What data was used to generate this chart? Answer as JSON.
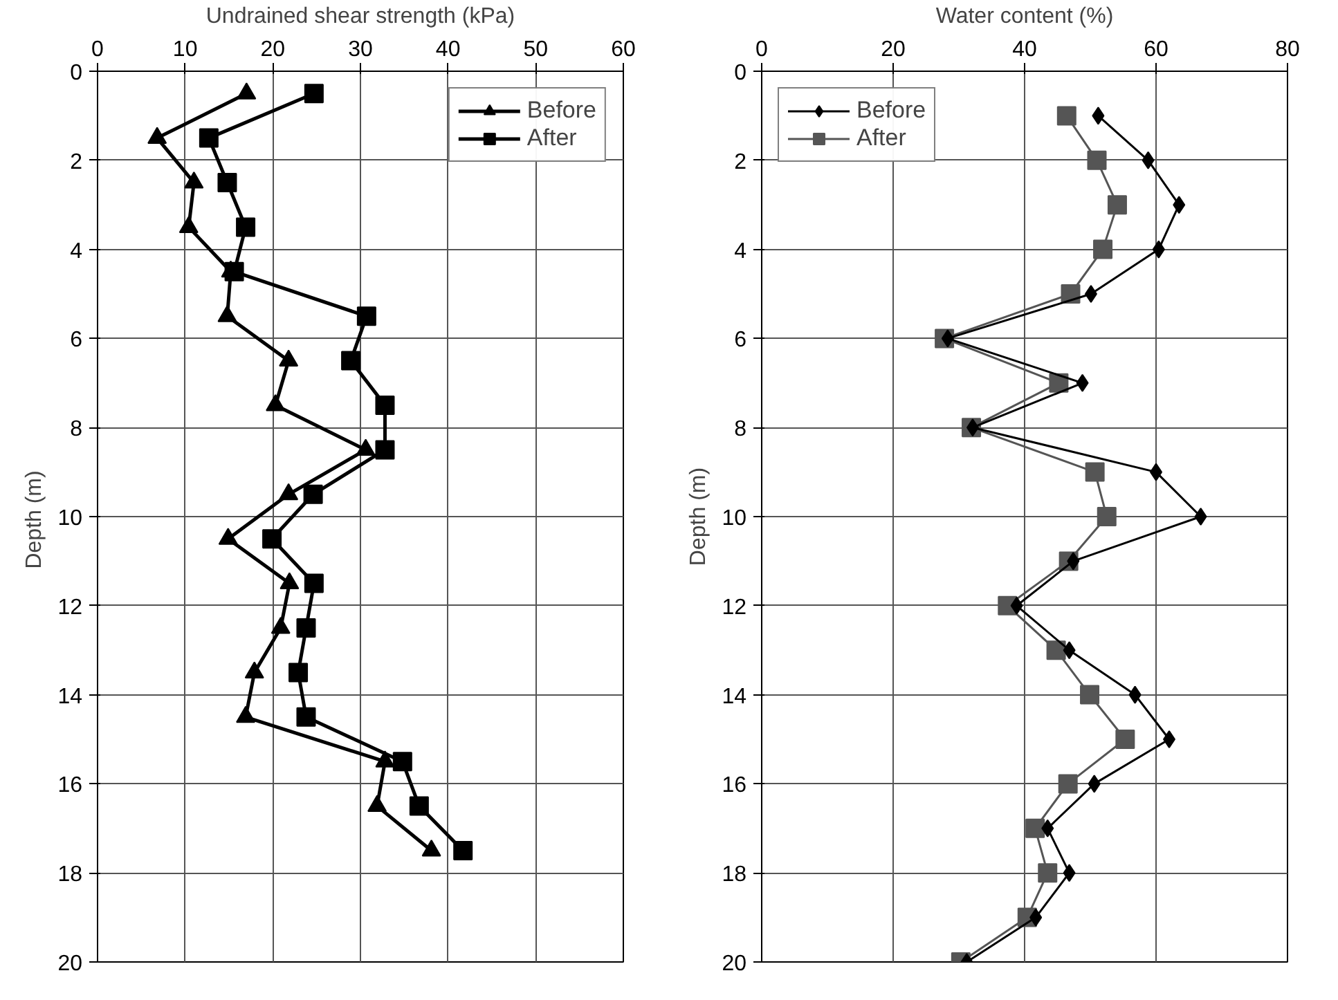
{
  "chart_data": [
    {
      "type": "line",
      "xlabel": "Undrained shear strength (kPa)",
      "ylabel": "Depth  (m)",
      "xlim": [
        0,
        60
      ],
      "xticks": [
        0,
        10,
        20,
        30,
        40,
        50,
        60
      ],
      "ylim": [
        20,
        0
      ],
      "yticks": [
        0,
        2,
        4,
        6,
        8,
        10,
        12,
        14,
        16,
        18,
        20
      ],
      "grid": true,
      "legend": "top right",
      "line_style": "solid",
      "series": [
        {
          "name": "Before",
          "color": "#000000",
          "marker": "triangle",
          "x": [
            17.0,
            6.8,
            11.0,
            10.4,
            15.2,
            14.8,
            21.8,
            20.3,
            30.6,
            21.8,
            14.9,
            21.9,
            20.9,
            17.9,
            16.9,
            32.8,
            31.9,
            38.1
          ],
          "values": [
            0.5,
            1.5,
            2.5,
            3.5,
            4.5,
            5.5,
            6.5,
            7.5,
            8.5,
            9.5,
            10.5,
            11.5,
            12.5,
            13.5,
            14.5,
            15.5,
            16.5,
            17.5
          ]
        },
        {
          "name": "After",
          "color": "#000000",
          "marker": "square",
          "x": [
            24.7,
            12.7,
            14.8,
            16.9,
            15.6,
            30.7,
            28.9,
            32.8,
            32.8,
            24.6,
            19.9,
            24.7,
            23.8,
            22.9,
            23.8,
            34.8,
            36.7,
            41.7
          ],
          "values": [
            0.5,
            1.5,
            2.5,
            3.5,
            4.5,
            5.5,
            6.5,
            7.5,
            8.5,
            9.5,
            10.5,
            11.5,
            12.5,
            13.5,
            14.5,
            15.5,
            16.5,
            17.5
          ]
        }
      ]
    },
    {
      "type": "line",
      "xlabel": "Water content (%)",
      "ylabel": "Depth (m)",
      "xlim": [
        0,
        80
      ],
      "xticks": [
        0,
        20,
        40,
        60,
        80
      ],
      "ylim": [
        20,
        0
      ],
      "yticks": [
        0,
        2,
        4,
        6,
        8,
        10,
        12,
        14,
        16,
        18,
        20
      ],
      "grid": true,
      "legend": "top left",
      "line_style": "solid",
      "series": [
        {
          "name": "Before",
          "color": "#000000",
          "marker": "diamond",
          "x": [
            51.2,
            58.8,
            63.5,
            60.4,
            50.1,
            28.3,
            48.8,
            32.1,
            60.0,
            66.8,
            47.4,
            38.8,
            46.8,
            56.8,
            62.0,
            50.6,
            43.5,
            46.8,
            41.7,
            31.2
          ],
          "values": [
            1,
            2,
            3,
            4,
            5,
            6,
            7,
            8,
            9,
            10,
            11,
            12,
            13,
            14,
            15,
            16,
            17,
            18,
            19,
            20
          ]
        },
        {
          "name": "After",
          "color": "#555555",
          "marker": "square",
          "x": [
            46.4,
            51.0,
            54.1,
            51.9,
            47.0,
            27.8,
            45.2,
            31.9,
            50.7,
            52.5,
            46.7,
            37.4,
            44.8,
            49.9,
            55.3,
            46.6,
            41.6,
            43.5,
            40.4,
            30.3
          ],
          "values": [
            1,
            2,
            3,
            4,
            5,
            6,
            7,
            8,
            9,
            10,
            11,
            12,
            13,
            14,
            15,
            16,
            17,
            18,
            19,
            20
          ]
        }
      ]
    }
  ]
}
